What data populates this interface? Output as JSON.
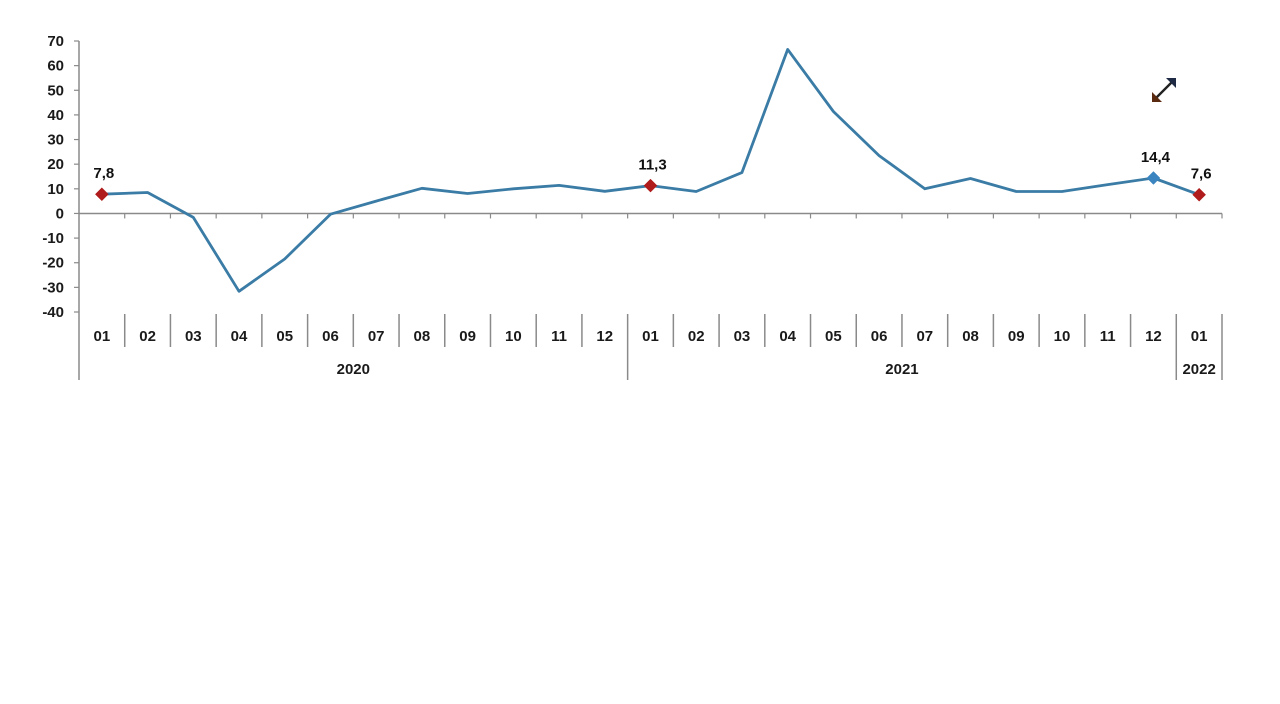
{
  "chart_data": {
    "type": "line",
    "title": "",
    "xlabel": "",
    "ylabel": "",
    "ylim": [
      -40,
      70
    ],
    "y_ticks": [
      70,
      60,
      50,
      40,
      30,
      20,
      10,
      0,
      -10,
      -20,
      -30,
      -40
    ],
    "grid": false,
    "legend": null,
    "categories": [
      "01",
      "02",
      "03",
      "04",
      "05",
      "06",
      "07",
      "08",
      "09",
      "10",
      "11",
      "12",
      "01",
      "02",
      "03",
      "04",
      "05",
      "06",
      "07",
      "08",
      "09",
      "10",
      "11",
      "12",
      "01"
    ],
    "year_groups": [
      {
        "label": "2020",
        "start": 0,
        "end": 11
      },
      {
        "label": "2021",
        "start": 12,
        "end": 23
      },
      {
        "label": "2022",
        "start": 24,
        "end": 24
      }
    ],
    "series": [
      {
        "name": "series",
        "color": "#3a7ca5",
        "values": [
          7.8,
          8.5,
          -1.6,
          -31.6,
          -18.5,
          -0.3,
          5.0,
          10.2,
          8.1,
          10.0,
          11.4,
          9.0,
          11.3,
          8.9,
          16.6,
          66.6,
          41.4,
          23.5,
          10.0,
          14.2,
          8.9,
          8.9,
          11.7,
          14.4,
          7.6
        ]
      }
    ],
    "annotations": [
      {
        "index": 0,
        "label": "7,8",
        "marker_color": "#b01c1c"
      },
      {
        "index": 12,
        "label": "11,3",
        "marker_color": "#b01c1c"
      },
      {
        "index": 23,
        "label": "14,4",
        "marker_color": "#3a85c0"
      },
      {
        "index": 24,
        "label": "7,6",
        "marker_color": "#b01c1c"
      }
    ]
  },
  "cursor": {
    "icon": "diagonal-resize-cursor-icon"
  }
}
